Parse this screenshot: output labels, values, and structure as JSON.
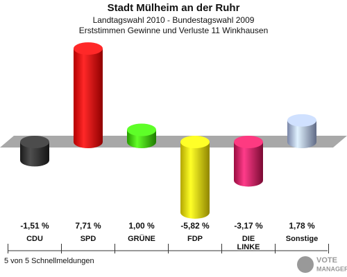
{
  "chart_data": {
    "type": "bar",
    "title": "Stadt Mülheim an der Ruhr",
    "subtitle": [
      "Landtagswahl 2010 - Bundestagswahl 2009",
      "Erststimmen Gewinne und Verluste 11 Winkhausen"
    ],
    "categories": [
      "CDU",
      "SPD",
      "GRÜNE",
      "FDP",
      "DIE LINKE",
      "Sonstige"
    ],
    "values": [
      -1.51,
      7.71,
      1.0,
      -5.82,
      -3.17,
      1.78
    ],
    "value_labels": [
      "-1,51 %",
      "7,71 %",
      "1,00 %",
      "-5,82 %",
      "-3,17 %",
      "1,78 %"
    ],
    "colors": [
      "#222222",
      "#ee0000",
      "#33cc00",
      "#eedd00",
      "#cc1155",
      "#a0b0dd"
    ],
    "footer": "5 von 5 Schnellmeldungen",
    "logo": [
      "VOTE",
      "MANAGER"
    ]
  }
}
